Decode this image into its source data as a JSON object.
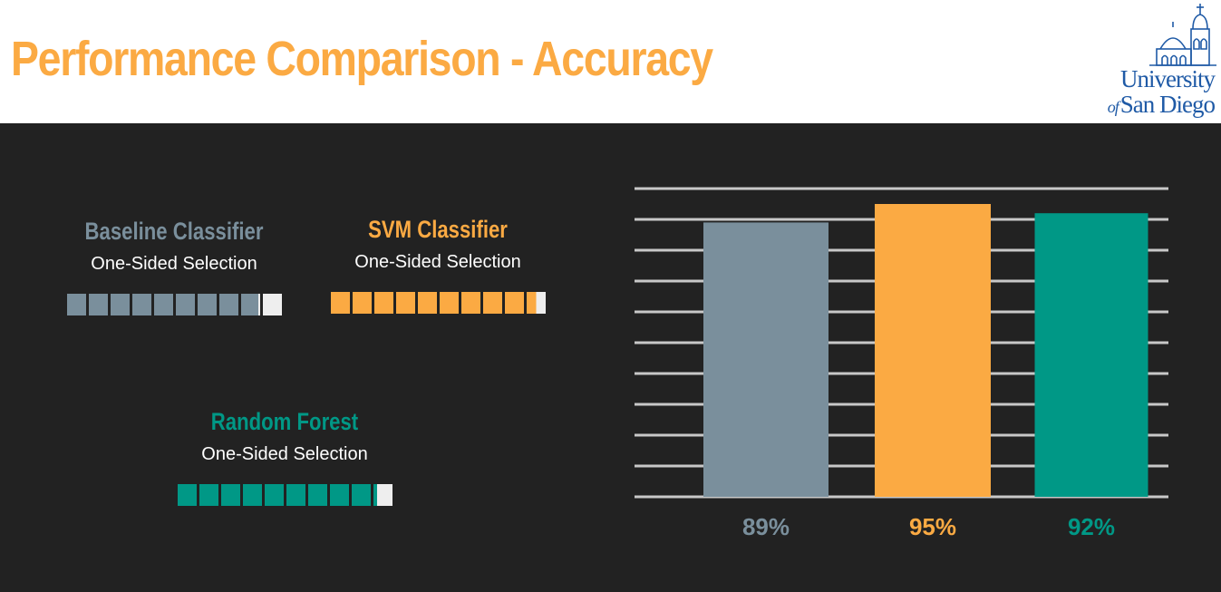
{
  "header": {
    "title": "Performance Comparison - Accuracy",
    "logo_line1": "University",
    "logo_of": "of",
    "logo_line2": "San Diego"
  },
  "colors": {
    "header_bg": "#ffffff",
    "body_bg": "#222222",
    "title": "#FBAA43",
    "baseline": "#7A8F9C",
    "svm": "#FBAA43",
    "random_forest": "#009886",
    "gridline": "#c8c8c8",
    "waffle_remainder": "#eeeeee",
    "logo": "#1f5aa6"
  },
  "panels": [
    {
      "title": "Baseline Classifier",
      "subtitle": "One-Sided Selection",
      "color": "#7A8F9C",
      "value": 89
    },
    {
      "title": "SVM Classifier",
      "subtitle": "One-Sided Selection",
      "color": "#FBAA43",
      "value": 95
    },
    {
      "title": "Random Forest",
      "subtitle": "One-Sided Selection",
      "color": "#009886",
      "value": 92
    }
  ],
  "chart_data": {
    "type": "bar",
    "title": "",
    "xlabel": "",
    "ylabel": "",
    "categories": [
      "Baseline Classifier",
      "SVM Classifier",
      "Random Forest"
    ],
    "values": [
      89,
      95,
      92
    ],
    "value_labels": [
      "89%",
      "95%",
      "92%"
    ],
    "colors": [
      "#7A8F9C",
      "#FBAA43",
      "#009886"
    ],
    "grid": true,
    "axis_ticks_shown": false,
    "legend": "none"
  }
}
